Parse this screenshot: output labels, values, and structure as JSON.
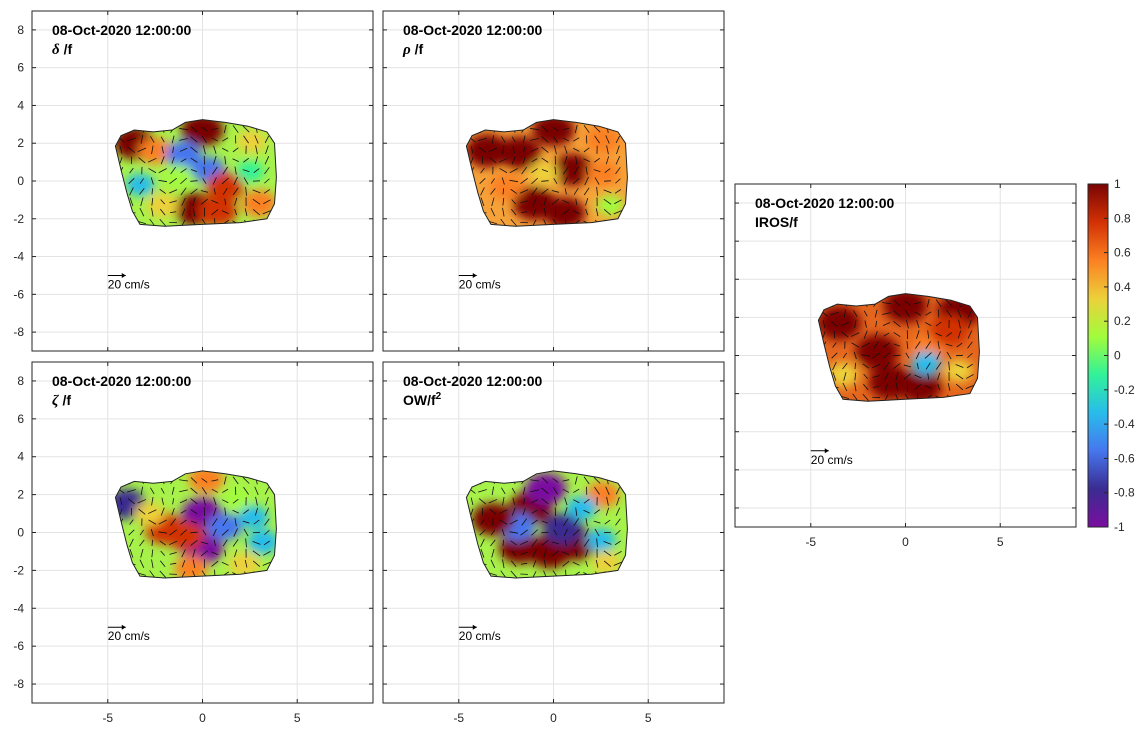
{
  "chart_data": {
    "type": "heatmap",
    "colorbar": {
      "range": [
        -1,
        1
      ],
      "ticks": [
        "1",
        "0.8",
        "0.6",
        "0.4",
        "0.2",
        "0",
        "-0.2",
        "-0.4",
        "-0.6",
        "-0.8",
        "-1"
      ],
      "colormap": [
        "#7a0403",
        "#d23105",
        "#fb8022",
        "#edd03a",
        "#a2fc3c",
        "#31f299",
        "#28bceb",
        "#4676ee",
        "#3a2c90",
        "#7a0ea0"
      ]
    },
    "panels": [
      {
        "id": "delta",
        "date": "08-Oct-2020 12:00:00",
        "label_symbol": "δ",
        "label_rest": " /f",
        "xlim": [
          -9,
          9
        ],
        "ylim": [
          -9,
          9
        ],
        "xticks": [
          "-5",
          "0",
          "5"
        ],
        "yticks": [
          "8",
          "6",
          "4",
          "2",
          "0",
          "-2",
          "-4",
          "-6",
          "-8"
        ],
        "show_xticks": false,
        "show_yticks": true,
        "scale_label": "20 cm/s",
        "field": [
          {
            "x": -3.6,
            "y": 2.0,
            "v": 0.9
          },
          {
            "x": -2.5,
            "y": 1.6,
            "v": 0.5
          },
          {
            "x": 0.0,
            "y": 2.7,
            "v": 0.95
          },
          {
            "x": -1.0,
            "y": 1.4,
            "v": -0.6
          },
          {
            "x": 0.3,
            "y": 0.6,
            "v": -0.5
          },
          {
            "x": -0.4,
            "y": -1.5,
            "v": 0.9
          },
          {
            "x": 0.8,
            "y": -1.6,
            "v": 0.8
          },
          {
            "x": 1.2,
            "y": -0.3,
            "v": 0.7
          },
          {
            "x": -3.3,
            "y": -0.2,
            "v": -0.25
          },
          {
            "x": -2.1,
            "y": -1.3,
            "v": 0.4
          },
          {
            "x": 2.5,
            "y": 0.5,
            "v": -0.2
          },
          {
            "x": 3.0,
            "y": -1.2,
            "v": 0.6
          },
          {
            "x": 2.6,
            "y": 2.1,
            "v": 0.3
          },
          {
            "x": -1.3,
            "y": 0.3,
            "v": 0.2
          }
        ]
      },
      {
        "id": "rho",
        "date": "08-Oct-2020 12:00:00",
        "label_symbol": "ρ",
        "label_rest": " /f",
        "xlim": [
          -9,
          9
        ],
        "ylim": [
          -9,
          9
        ],
        "xticks": [
          "-5",
          "0",
          "5"
        ],
        "yticks": [
          "8",
          "6",
          "4",
          "2",
          "0",
          "-2",
          "-4",
          "-6",
          "-8"
        ],
        "show_xticks": false,
        "show_yticks": false,
        "scale_label": "20 cm/s",
        "field": [
          {
            "x": -3.5,
            "y": 1.6,
            "v": 1.0
          },
          {
            "x": -1.8,
            "y": 1.5,
            "v": 0.95
          },
          {
            "x": 0.0,
            "y": 2.7,
            "v": 0.95
          },
          {
            "x": -1.0,
            "y": -1.2,
            "v": 1.0
          },
          {
            "x": 0.6,
            "y": -1.7,
            "v": 0.9
          },
          {
            "x": 1.0,
            "y": 0.6,
            "v": 0.9
          },
          {
            "x": -2.5,
            "y": -0.3,
            "v": 0.5
          },
          {
            "x": 2.6,
            "y": 0.4,
            "v": 0.45
          },
          {
            "x": 3.0,
            "y": -1.3,
            "v": 0.2
          },
          {
            "x": 2.6,
            "y": 2.2,
            "v": 0.6
          },
          {
            "x": -0.5,
            "y": 0.4,
            "v": 0.3
          }
        ]
      },
      {
        "id": "zeta",
        "date": "08-Oct-2020 12:00:00",
        "label_symbol": "ζ",
        "label_rest": " /f",
        "xlim": [
          -9,
          9
        ],
        "ylim": [
          -9,
          9
        ],
        "xticks": [
          "-5",
          "0",
          "5"
        ],
        "yticks": [
          "8",
          "6",
          "4",
          "2",
          "0",
          "-2",
          "-4",
          "-6",
          "-8"
        ],
        "show_xticks": true,
        "show_yticks": true,
        "scale_label": "20 cm/s",
        "field": [
          {
            "x": -4.0,
            "y": 1.5,
            "v": -0.75
          },
          {
            "x": -2.0,
            "y": 0.2,
            "v": 0.85
          },
          {
            "x": -2.8,
            "y": 1.0,
            "v": 0.3
          },
          {
            "x": 0.0,
            "y": 1.0,
            "v": -0.9
          },
          {
            "x": 0.0,
            "y": -0.8,
            "v": -0.95
          },
          {
            "x": 1.2,
            "y": 0.3,
            "v": -0.55
          },
          {
            "x": -0.9,
            "y": -0.2,
            "v": 0.7
          },
          {
            "x": 0.2,
            "y": 2.8,
            "v": 0.6
          },
          {
            "x": 2.7,
            "y": 0.8,
            "v": -0.3
          },
          {
            "x": 2.2,
            "y": -1.7,
            "v": 0.4
          },
          {
            "x": -0.6,
            "y": -1.9,
            "v": 0.5
          },
          {
            "x": 3.2,
            "y": -0.5,
            "v": -0.4
          },
          {
            "x": 1.8,
            "y": 1.8,
            "v": 0.2
          }
        ]
      },
      {
        "id": "ow",
        "date": "08-Oct-2020 12:00:00",
        "label_symbol": "",
        "label_rest": "OW/f",
        "label_sup": "2",
        "xlim": [
          -9,
          9
        ],
        "ylim": [
          -9,
          9
        ],
        "xticks": [
          "-5",
          "0",
          "5"
        ],
        "yticks": [
          "8",
          "6",
          "4",
          "2",
          "0",
          "-2",
          "-4",
          "-6",
          "-8"
        ],
        "show_xticks": true,
        "show_yticks": false,
        "scale_label": "20 cm/s",
        "field": [
          {
            "x": -1.2,
            "y": 1.3,
            "v": 1.0
          },
          {
            "x": -0.2,
            "y": -1.0,
            "v": 1.0
          },
          {
            "x": 1.2,
            "y": -0.6,
            "v": 0.95
          },
          {
            "x": -1.8,
            "y": -0.8,
            "v": 0.9
          },
          {
            "x": -0.4,
            "y": 2.3,
            "v": -0.9
          },
          {
            "x": 0.5,
            "y": 0.2,
            "v": -0.85
          },
          {
            "x": -1.9,
            "y": 0.3,
            "v": -0.6
          },
          {
            "x": -3.2,
            "y": 0.7,
            "v": 0.95
          },
          {
            "x": 2.6,
            "y": 2.0,
            "v": 0.5
          },
          {
            "x": 2.5,
            "y": -0.4,
            "v": -0.3
          },
          {
            "x": 1.5,
            "y": 1.3,
            "v": -0.35
          },
          {
            "x": 2.8,
            "y": -1.6,
            "v": 0.3
          }
        ]
      },
      {
        "id": "iros",
        "date": "08-Oct-2020 12:00:00",
        "label_symbol": "",
        "label_rest": "IROS/f",
        "xlim": [
          -9,
          9
        ],
        "ylim": [
          -9,
          9
        ],
        "xticks": [
          "-5",
          "0",
          "5"
        ],
        "yticks": [],
        "show_xticks": true,
        "show_yticks": false,
        "scale_label": "20 cm/s",
        "field": [
          {
            "x": -3.5,
            "y": 1.7,
            "v": 1.0
          },
          {
            "x": 0.0,
            "y": 2.6,
            "v": 1.0
          },
          {
            "x": 2.8,
            "y": 2.3,
            "v": 1.0
          },
          {
            "x": -1.5,
            "y": 0.2,
            "v": 1.0
          },
          {
            "x": -0.8,
            "y": -1.4,
            "v": 1.0
          },
          {
            "x": 0.8,
            "y": -1.6,
            "v": 0.95
          },
          {
            "x": 1.2,
            "y": 0.4,
            "v": 0.6
          },
          {
            "x": -3.3,
            "y": -1.0,
            "v": 0.4
          },
          {
            "x": 2.8,
            "y": -0.8,
            "v": 0.3
          },
          {
            "x": 1.1,
            "y": -0.4,
            "v": -0.3
          },
          {
            "x": 2.3,
            "y": 1.3,
            "v": 0.8
          }
        ]
      }
    ]
  }
}
